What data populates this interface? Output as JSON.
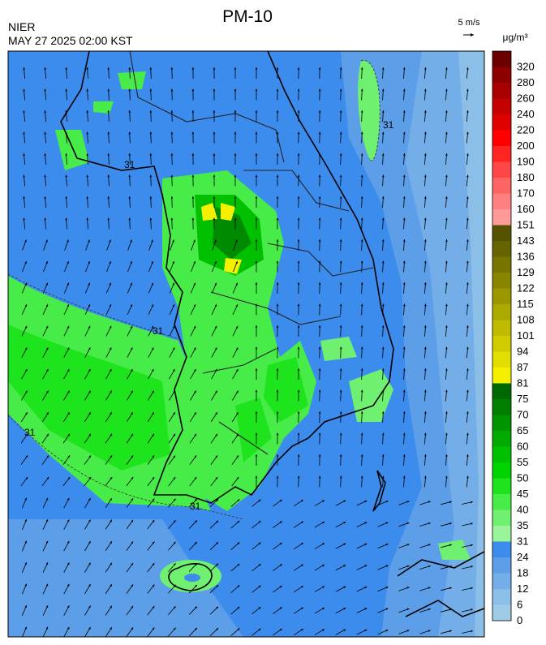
{
  "header": {
    "title": "PM-10",
    "agency": "NIER",
    "datetime": "MAY 27 2025 02:00 KST",
    "wind_scale": "5 m/s",
    "unit": "μg/m³"
  },
  "contour_labels": [
    "31",
    "31",
    "31",
    "31",
    "31"
  ],
  "legend": {
    "levels": [
      {
        "label": 0,
        "color": "#9fcbe6"
      },
      {
        "label": 6,
        "color": "#8cbfe8"
      },
      {
        "label": 12,
        "color": "#74aee9"
      },
      {
        "label": 18,
        "color": "#5d9ee9"
      },
      {
        "label": 24,
        "color": "#3c8cee"
      },
      {
        "label": 31,
        "color": "#9af59a"
      },
      {
        "label": 35,
        "color": "#70f070"
      },
      {
        "label": 40,
        "color": "#48ec48"
      },
      {
        "label": 45,
        "color": "#1ee41e"
      },
      {
        "label": 50,
        "color": "#00d400"
      },
      {
        "label": 55,
        "color": "#00c000"
      },
      {
        "label": 60,
        "color": "#00aa00"
      },
      {
        "label": 65,
        "color": "#009400"
      },
      {
        "label": 70,
        "color": "#007e00"
      },
      {
        "label": 75,
        "color": "#006800"
      },
      {
        "label": 81,
        "color": "#f4f000"
      },
      {
        "label": 87,
        "color": "#e2de00"
      },
      {
        "label": 94,
        "color": "#d0cc00"
      },
      {
        "label": 101,
        "color": "#bebb00"
      },
      {
        "label": 108,
        "color": "#aca900"
      },
      {
        "label": 115,
        "color": "#9a9700"
      },
      {
        "label": 122,
        "color": "#888600"
      },
      {
        "label": 129,
        "color": "#777500"
      },
      {
        "label": 136,
        "color": "#666400"
      },
      {
        "label": 143,
        "color": "#555300"
      },
      {
        "label": 151,
        "color": "#ff9a9a"
      },
      {
        "label": 160,
        "color": "#ff8080"
      },
      {
        "label": 170,
        "color": "#ff6464"
      },
      {
        "label": 180,
        "color": "#ff4646"
      },
      {
        "label": 190,
        "color": "#ff2424"
      },
      {
        "label": 200,
        "color": "#ff0000"
      },
      {
        "label": 220,
        "color": "#e00000"
      },
      {
        "label": 240,
        "color": "#c40000"
      },
      {
        "label": 260,
        "color": "#a80000"
      },
      {
        "label": 280,
        "color": "#8c0000"
      },
      {
        "label": 320,
        "color": "#6a0000"
      }
    ]
  }
}
